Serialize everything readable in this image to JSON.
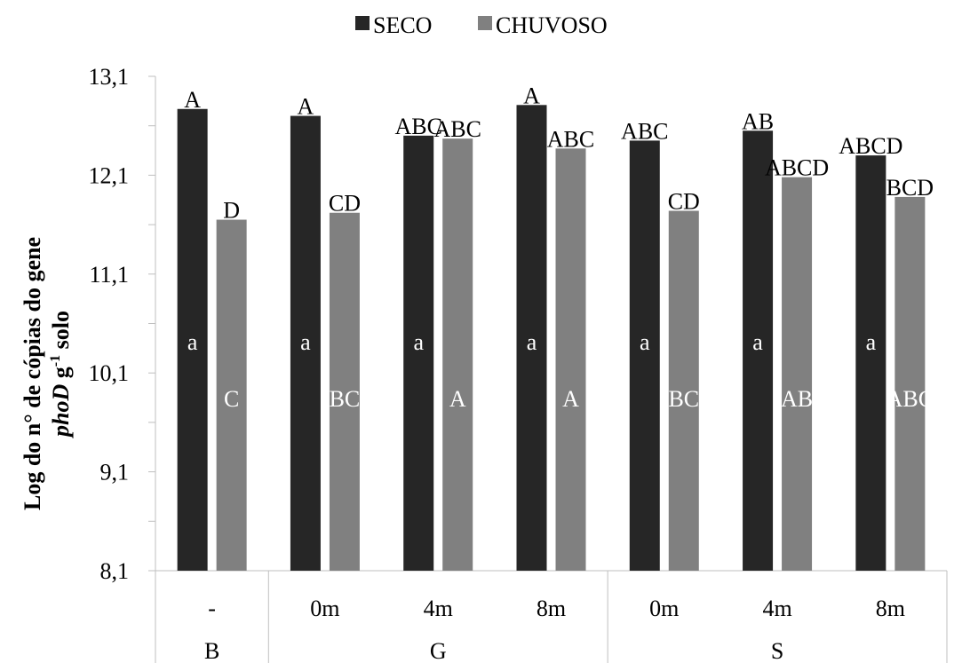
{
  "chart_data": {
    "type": "bar",
    "ylabel": {
      "pre": "Log do n° de cópias do gene",
      "gene": "phoD",
      "unit": " g",
      "sup": "-1",
      "post": " solo"
    },
    "yticks": [
      "13,1",
      "12,1",
      "11,1",
      "10,1",
      "9,1",
      "8,1"
    ],
    "ylim": [
      8.1,
      13.1
    ],
    "categories": [
      "-",
      "0m",
      "4m",
      "8m",
      "0m",
      "4m",
      "8m"
    ],
    "groups": [
      {
        "label": "B",
        "span": 1
      },
      {
        "label": "G",
        "span": 3
      },
      {
        "label": "S",
        "span": 3
      }
    ],
    "series": [
      {
        "name": "SECO",
        "color": "#262626",
        "values": [
          12.77,
          12.7,
          12.5,
          12.81,
          12.45,
          12.55,
          12.3
        ],
        "top_labels": [
          "A",
          "A",
          "ABC",
          "A",
          "ABC",
          "AB",
          "ABCD"
        ],
        "inner_labels": [
          "a",
          "a",
          "a",
          "a",
          "a",
          "a",
          "a"
        ]
      },
      {
        "name": "CHUVOSO",
        "color": "#808080",
        "values": [
          11.65,
          11.72,
          12.47,
          12.37,
          11.74,
          12.08,
          11.88
        ],
        "top_labels": [
          "D",
          "CD",
          "ABC",
          "ABC",
          "CD",
          "ABCD",
          "BCD"
        ],
        "inner_labels": [
          "C",
          "BC",
          "A",
          "A",
          "BC",
          "AB",
          "ABC"
        ]
      }
    ],
    "legend": "top"
  }
}
